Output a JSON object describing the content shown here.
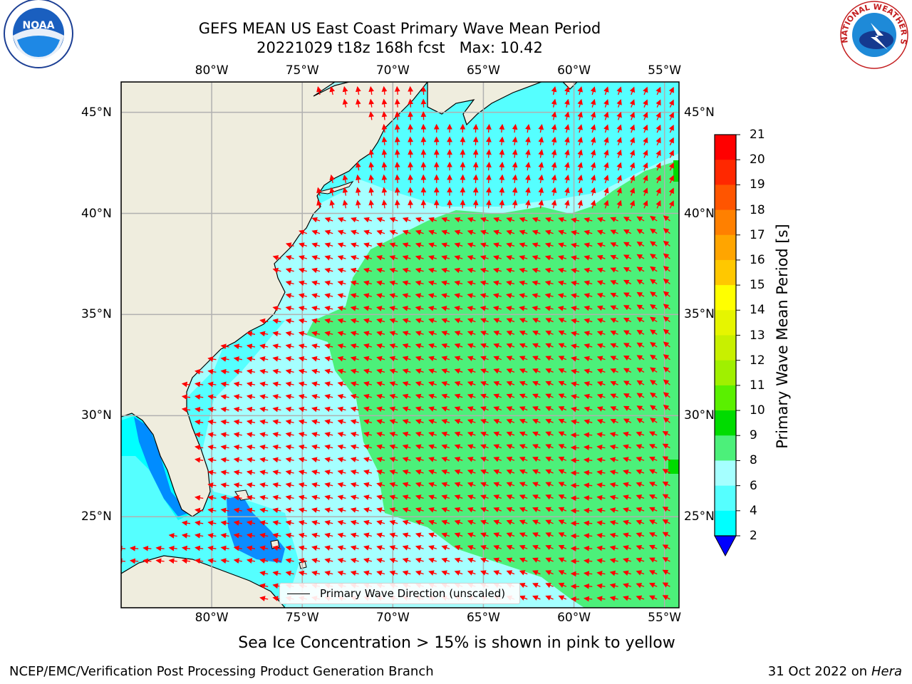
{
  "title": {
    "line1": "GEFS MEAN US East Coast Primary Wave Mean Period",
    "line2": "20221029 t18z 168h fcst   Max: 10.42"
  },
  "map": {
    "longitude_labels": [
      "80°W",
      "75°W",
      "70°W",
      "65°W",
      "60°W",
      "55°W"
    ],
    "latitude_labels": [
      "45°N",
      "40°N",
      "35°N",
      "30°N",
      "25°N"
    ],
    "lon_range": [
      -85,
      -54.2
    ],
    "lat_range": [
      20.5,
      46.5
    ],
    "grid": true,
    "land_color": "#efedde",
    "arrow_color": "#ff0000",
    "legend": {
      "label": "Primary Wave Direction (unscaled)",
      "placement": "bottom-center"
    },
    "max_value": 10.42
  },
  "colorbar": {
    "label": "Primary Wave Mean Period [s]",
    "ticks": [
      "21",
      "20",
      "19",
      "18",
      "17",
      "16",
      "15",
      "14",
      "13",
      "12",
      "11",
      "10",
      "9",
      "8",
      "6",
      "4",
      "2"
    ],
    "colors_top_to_bottom": [
      "#ff0000",
      "#ff2800",
      "#ff5500",
      "#ff8000",
      "#ffa500",
      "#ffc800",
      "#ffff00",
      "#e6f500",
      "#c8f000",
      "#a0f000",
      "#5af000",
      "#00dc00",
      "#4cf07a",
      "#a5ffff",
      "#55ffff",
      "#00ffff",
      "#00c8ff",
      "#0078ff"
    ],
    "extend_color": "#0000ff"
  },
  "footer": {
    "note": "Sea Ice Concentration > 15% is shown in pink to yellow",
    "left": "NCEP/EMC/Verification Post Processing Product Generation Branch",
    "right_date": "31 Oct 2022 on ",
    "right_machine": "Hera"
  },
  "logos": {
    "noaa": "NOAA",
    "nws": "NATIONAL WEATHER SERVICE"
  }
}
